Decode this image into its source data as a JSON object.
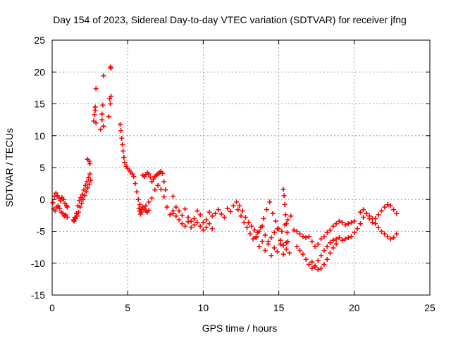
{
  "chart_data": {
    "type": "scatter",
    "title": "Day 154 of 2023, Sidereal Day-to-day VTEC variation (SDTVAR) for receiver jfng",
    "xlabel": "GPS time / hours",
    "ylabel": "SDTVAR / TECUs",
    "xlim": [
      0,
      25
    ],
    "ylim": [
      -15,
      25
    ],
    "xticks": [
      0,
      5,
      10,
      15,
      20,
      25
    ],
    "yticks": [
      -15,
      -10,
      -5,
      0,
      5,
      10,
      15,
      20,
      25
    ],
    "grid": true,
    "marker": "plus",
    "color": "#ff0000",
    "series": [
      {
        "name": "SDTVAR",
        "x": [
          0.05,
          0.15,
          0.25,
          0.35,
          0.45,
          0.55,
          0.65,
          0.75,
          0.85,
          0.95,
          1.0,
          0.1,
          0.2,
          0.3,
          0.4,
          0.5,
          0.6,
          0.7,
          0.8,
          0.9,
          1.0,
          1.4,
          1.5,
          1.6,
          1.7,
          1.8,
          1.9,
          2.0,
          2.1,
          2.2,
          2.3,
          2.4,
          2.5,
          1.45,
          1.55,
          1.65,
          1.75,
          1.85,
          1.95,
          2.05,
          2.15,
          2.25,
          2.35,
          2.45,
          2.55,
          2.35,
          2.45,
          2.5,
          2.75,
          2.8,
          2.85,
          2.9,
          3.2,
          3.3,
          3.35,
          3.4,
          3.75,
          3.8,
          3.85,
          3.9,
          2.85,
          2.9,
          3.3,
          3.4,
          3.85,
          3.9,
          4.5,
          4.55,
          4.6,
          4.65,
          4.7,
          4.75,
          4.8,
          4.9,
          5.0,
          5.1,
          5.2,
          5.3,
          5.4,
          5.5,
          5.6,
          5.7,
          5.8,
          5.75,
          5.8,
          5.85,
          5.9,
          5.95,
          6.0,
          6.1,
          6.2,
          6.3,
          6.4,
          6.0,
          6.1,
          6.2,
          6.3,
          6.4,
          6.5,
          6.6,
          6.7,
          6.8,
          6.9,
          7.0,
          7.1,
          7.2,
          7.3,
          7.4,
          7.5,
          6.2,
          6.4,
          6.6,
          6.8,
          7.0,
          7.2,
          7.4,
          7.6,
          7.8,
          8.0,
          8.0,
          8.2,
          8.4,
          8.6,
          8.8,
          9.0,
          9.2,
          9.4,
          9.6,
          9.8,
          10.0,
          10.2,
          10.4,
          10.6,
          10.8,
          11.0,
          11.2,
          11.4,
          11.6,
          11.8,
          12.0,
          8.0,
          8.2,
          8.4,
          8.6,
          8.8,
          9.0,
          9.2,
          9.4,
          9.6,
          9.8,
          10.0,
          10.2,
          10.4,
          10.6,
          12.2,
          12.4,
          12.6,
          12.8,
          13.0,
          13.2,
          13.4,
          13.6,
          13.8,
          14.0,
          14.2,
          14.4,
          14.6,
          14.8,
          15.0,
          15.2,
          15.4,
          15.6,
          15.8,
          12.3,
          12.5,
          12.7,
          12.9,
          13.1,
          13.3,
          13.5,
          13.7,
          13.9,
          14.1,
          14.3,
          14.5,
          14.7,
          14.9,
          15.1,
          15.3,
          15.5,
          13.5,
          13.7,
          13.9,
          14.1,
          14.3,
          14.5,
          14.7,
          14.9,
          15.1,
          15.3,
          15.5,
          15.7,
          15.3,
          15.35,
          15.4,
          15.45,
          15.5,
          15.55,
          15.6,
          16.0,
          16.2,
          16.4,
          16.6,
          16.8,
          17.0,
          17.2,
          17.4,
          17.6,
          17.8,
          18.0,
          18.2,
          18.4,
          18.6,
          18.8,
          19.0,
          19.2,
          19.4,
          19.6,
          19.8,
          20.0,
          16.2,
          16.4,
          16.6,
          16.8,
          17.0,
          17.2,
          17.4,
          17.6,
          17.8,
          18.0,
          18.2,
          18.4,
          18.6,
          18.8,
          19.0,
          19.2,
          19.4,
          19.6,
          19.8,
          17.2,
          17.4,
          17.6,
          17.8,
          18.0,
          18.2,
          18.4,
          18.6,
          18.8,
          20.0,
          20.2,
          20.4,
          20.6,
          20.8,
          21.0,
          21.2,
          21.4,
          21.6,
          21.8,
          22.0,
          22.2,
          22.4,
          22.6,
          22.8,
          20.4,
          20.6,
          20.8,
          21.0,
          21.2,
          21.4,
          21.6,
          21.8,
          22.0,
          22.2,
          22.4,
          22.6,
          22.8
        ],
        "y": [
          -0.5,
          0.5,
          1.0,
          0.6,
          0.2,
          -0.2,
          0.3,
          0.0,
          -0.6,
          -1.0,
          -1.2,
          -1.5,
          -1.8,
          -1.2,
          -1.0,
          -1.4,
          -2.0,
          -2.2,
          -2.6,
          -2.4,
          -2.8,
          -3.2,
          -2.8,
          -2.2,
          -1.0,
          -0.2,
          0.3,
          0.8,
          1.5,
          2.2,
          2.8,
          3.4,
          4.0,
          -3.4,
          -3.0,
          -2.6,
          -2.0,
          -1.2,
          -0.6,
          0.0,
          0.6,
          1.2,
          1.8,
          2.4,
          3.0,
          6.3,
          6.0,
          5.6,
          12.3,
          13.3,
          14.5,
          17.4,
          11.0,
          13.4,
          14.8,
          19.4,
          13.0,
          15.8,
          20.8,
          16.2,
          14.0,
          12.0,
          12.5,
          11.5,
          15.0,
          20.6,
          11.8,
          10.8,
          9.6,
          8.6,
          7.6,
          6.6,
          5.8,
          5.2,
          4.9,
          4.6,
          4.3,
          4.0,
          3.6,
          2.5,
          1.2,
          0.0,
          -0.8,
          -1.4,
          -1.8,
          -2.3,
          -2.0,
          -1.6,
          -1.2,
          -1.5,
          -1.8,
          -2.0,
          -1.7,
          3.8,
          3.6,
          3.9,
          4.2,
          4.0,
          3.5,
          2.8,
          3.2,
          3.6,
          3.8,
          4.0,
          4.2,
          4.4,
          4.1,
          2.8,
          1.5,
          -1.0,
          -0.4,
          0.2,
          1.5,
          2.2,
          1.6,
          0.4,
          -1.2,
          -2.4,
          -2.2,
          0.5,
          -1.2,
          -1.8,
          -2.5,
          -1.5,
          -2.8,
          -3.4,
          -3.0,
          -1.8,
          -2.4,
          -3.6,
          -3.2,
          -2.0,
          -2.6,
          -2.2,
          -1.6,
          -2.3,
          -2.8,
          -1.4,
          -1.9,
          -1.0,
          -1.8,
          -2.6,
          -3.2,
          -3.8,
          -4.2,
          -3.5,
          -4.4,
          -4.0,
          -3.6,
          -4.2,
          -4.8,
          -4.4,
          -3.8,
          -4.6,
          -0.4,
          -1.0,
          -1.8,
          -2.8,
          -3.6,
          -4.2,
          -4.8,
          -5.2,
          -4.4,
          -3.0,
          -1.6,
          -0.4,
          -2.2,
          -3.4,
          -4.6,
          -5.0,
          -4.0,
          -3.2,
          -2.6,
          -1.6,
          -2.6,
          -3.6,
          -4.4,
          -5.4,
          -6.2,
          -5.8,
          -5.0,
          -4.2,
          -5.6,
          -6.6,
          -6.0,
          -5.2,
          -4.6,
          -6.4,
          -7.2,
          -6.8,
          -6.0,
          -7.4,
          -6.6,
          -8.0,
          -7.0,
          -8.8,
          -7.6,
          -8.2,
          -7.0,
          -8.6,
          -7.8,
          -8.4,
          1.6,
          0.6,
          -0.8,
          -2.4,
          -3.8,
          -5.2,
          -6.6,
          -4.8,
          -5.0,
          -5.4,
          -5.8,
          -6.0,
          -5.8,
          -6.6,
          -7.4,
          -7.0,
          -6.2,
          -5.8,
          -5.2,
          -4.8,
          -4.2,
          -3.8,
          -3.4,
          -3.6,
          -4.0,
          -3.8,
          -3.6,
          -3.4,
          -7.4,
          -8.0,
          -8.6,
          -9.4,
          -10.2,
          -10.8,
          -10.4,
          -9.6,
          -8.8,
          -8.0,
          -7.4,
          -6.8,
          -6.4,
          -6.2,
          -6.0,
          -6.4,
          -6.2,
          -6.0,
          -5.8,
          -9.8,
          -10.6,
          -11.0,
          -10.8,
          -10.2,
          -9.4,
          -8.4,
          -7.6,
          -7.0,
          -5.2,
          -4.6,
          -3.8,
          -2.8,
          -2.2,
          -2.6,
          -3.0,
          -3.8,
          -4.4,
          -5.0,
          -5.4,
          -5.8,
          -6.2,
          -6.0,
          -5.4,
          -2.0,
          -1.6,
          -2.2,
          -3.0,
          -3.6,
          -3.0,
          -2.4,
          -1.8,
          -1.2,
          -0.8,
          -1.0,
          -1.6,
          -2.2
        ]
      }
    ]
  }
}
